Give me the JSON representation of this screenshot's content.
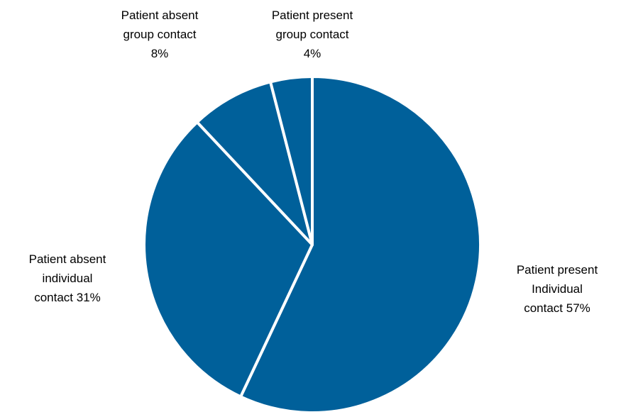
{
  "chart_data": {
    "type": "pie",
    "categories": [
      "Patient present Individual contact",
      "Patient absent individual contact",
      "Patient absent group contact",
      "Patient present group contact"
    ],
    "values": [
      57,
      31,
      8,
      4
    ],
    "value_labels": [
      "57%",
      "31%",
      "8%",
      "4%"
    ],
    "color": "#00609a"
  }
}
